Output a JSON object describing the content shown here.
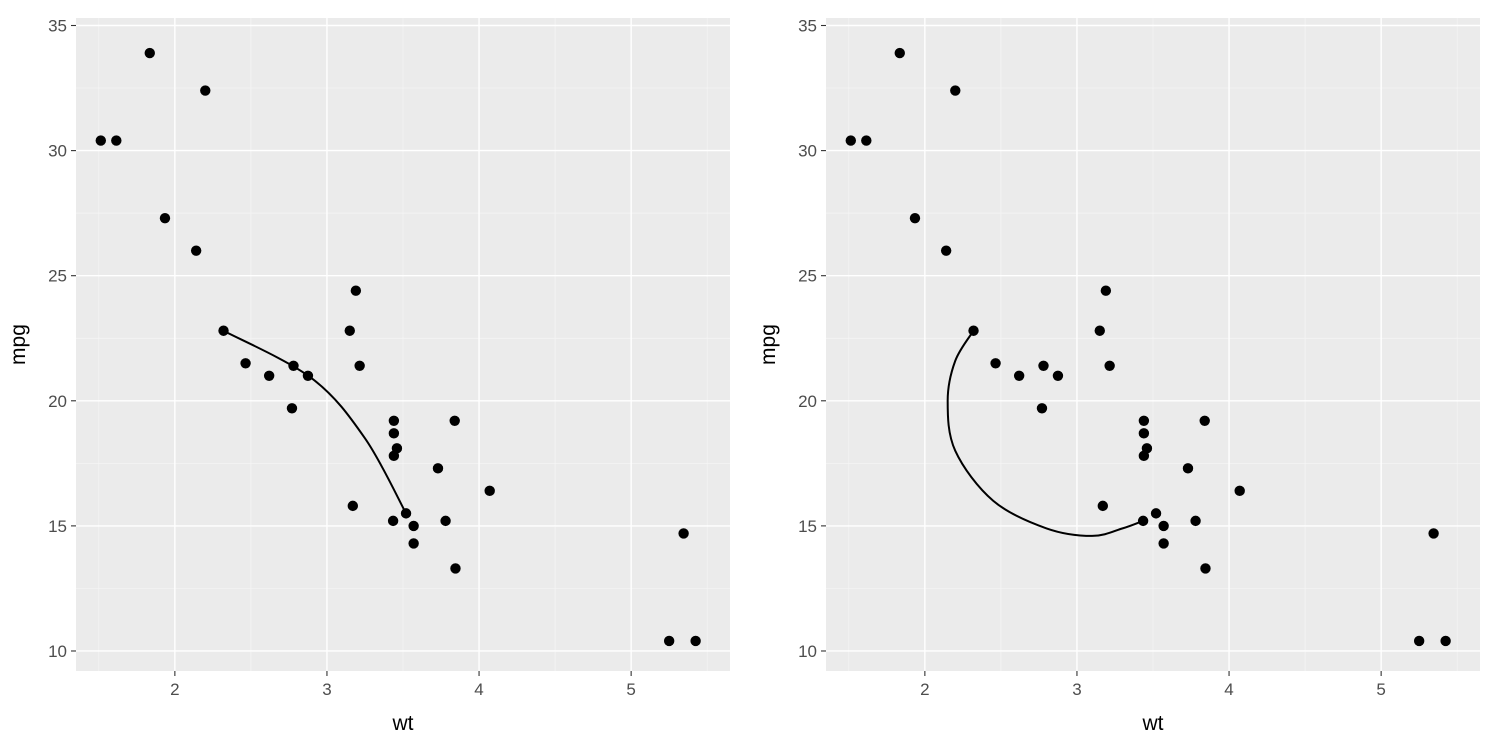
{
  "chart_data": [
    {
      "type": "scatter",
      "xlabel": "wt",
      "ylabel": "mpg",
      "xlim": [
        1.35,
        5.65
      ],
      "ylim": [
        9.2,
        35.3
      ],
      "x_ticks": [
        2,
        3,
        4,
        5
      ],
      "y_ticks": [
        10,
        15,
        20,
        25,
        30,
        35
      ],
      "x_tick_labels": [
        "2",
        "3",
        "4",
        "5"
      ],
      "y_tick_labels": [
        "10",
        "15",
        "20",
        "25",
        "30",
        "35"
      ],
      "grid": true,
      "points": [
        [
          1.513,
          30.4
        ],
        [
          1.615,
          30.4
        ],
        [
          1.835,
          33.9
        ],
        [
          1.935,
          27.3
        ],
        [
          2.14,
          26.0
        ],
        [
          2.2,
          32.4
        ],
        [
          2.32,
          22.8
        ],
        [
          2.465,
          21.5
        ],
        [
          2.62,
          21.0
        ],
        [
          2.77,
          19.7
        ],
        [
          2.78,
          21.4
        ],
        [
          2.875,
          21.0
        ],
        [
          3.15,
          22.8
        ],
        [
          3.17,
          15.8
        ],
        [
          3.19,
          24.4
        ],
        [
          3.215,
          21.4
        ],
        [
          3.435,
          15.2
        ],
        [
          3.44,
          19.2
        ],
        [
          3.44,
          18.7
        ],
        [
          3.44,
          17.8
        ],
        [
          3.46,
          18.1
        ],
        [
          3.52,
          15.5
        ],
        [
          3.57,
          15.0
        ],
        [
          3.57,
          14.3
        ],
        [
          3.73,
          17.3
        ],
        [
          3.78,
          15.2
        ],
        [
          3.84,
          19.2
        ],
        [
          3.845,
          13.3
        ],
        [
          4.07,
          16.4
        ],
        [
          5.25,
          10.4
        ],
        [
          5.345,
          14.7
        ],
        [
          5.424,
          10.4
        ]
      ],
      "curve": [
        [
          2.32,
          22.8
        ],
        [
          2.9,
          20.9
        ],
        [
          3.25,
          18.5
        ],
        [
          3.52,
          15.5
        ]
      ]
    },
    {
      "type": "scatter",
      "xlabel": "wt",
      "ylabel": "mpg",
      "xlim": [
        1.35,
        5.65
      ],
      "ylim": [
        9.2,
        35.3
      ],
      "x_ticks": [
        2,
        3,
        4,
        5
      ],
      "y_ticks": [
        10,
        15,
        20,
        25,
        30,
        35
      ],
      "x_tick_labels": [
        "2",
        "3",
        "4",
        "5"
      ],
      "y_tick_labels": [
        "10",
        "15",
        "20",
        "25",
        "30",
        "35"
      ],
      "grid": true,
      "points": [
        [
          1.513,
          30.4
        ],
        [
          1.615,
          30.4
        ],
        [
          1.835,
          33.9
        ],
        [
          1.935,
          27.3
        ],
        [
          2.14,
          26.0
        ],
        [
          2.2,
          32.4
        ],
        [
          2.32,
          22.8
        ],
        [
          2.465,
          21.5
        ],
        [
          2.62,
          21.0
        ],
        [
          2.77,
          19.7
        ],
        [
          2.78,
          21.4
        ],
        [
          2.875,
          21.0
        ],
        [
          3.15,
          22.8
        ],
        [
          3.17,
          15.8
        ],
        [
          3.19,
          24.4
        ],
        [
          3.215,
          21.4
        ],
        [
          3.435,
          15.2
        ],
        [
          3.44,
          19.2
        ],
        [
          3.44,
          18.7
        ],
        [
          3.44,
          17.8
        ],
        [
          3.46,
          18.1
        ],
        [
          3.52,
          15.5
        ],
        [
          3.57,
          15.0
        ],
        [
          3.57,
          14.3
        ],
        [
          3.73,
          17.3
        ],
        [
          3.78,
          15.2
        ],
        [
          3.84,
          19.2
        ],
        [
          3.845,
          13.3
        ],
        [
          4.07,
          16.4
        ],
        [
          5.25,
          10.4
        ],
        [
          5.345,
          14.7
        ],
        [
          5.424,
          10.4
        ]
      ],
      "curve": [
        [
          2.32,
          22.8
        ],
        [
          2.2,
          21.6
        ],
        [
          2.15,
          20.0
        ],
        [
          2.2,
          18.0
        ],
        [
          2.45,
          16.0
        ],
        [
          2.8,
          14.9
        ],
        [
          3.1,
          14.6
        ],
        [
          3.3,
          14.9
        ],
        [
          3.435,
          15.2
        ]
      ]
    }
  ]
}
